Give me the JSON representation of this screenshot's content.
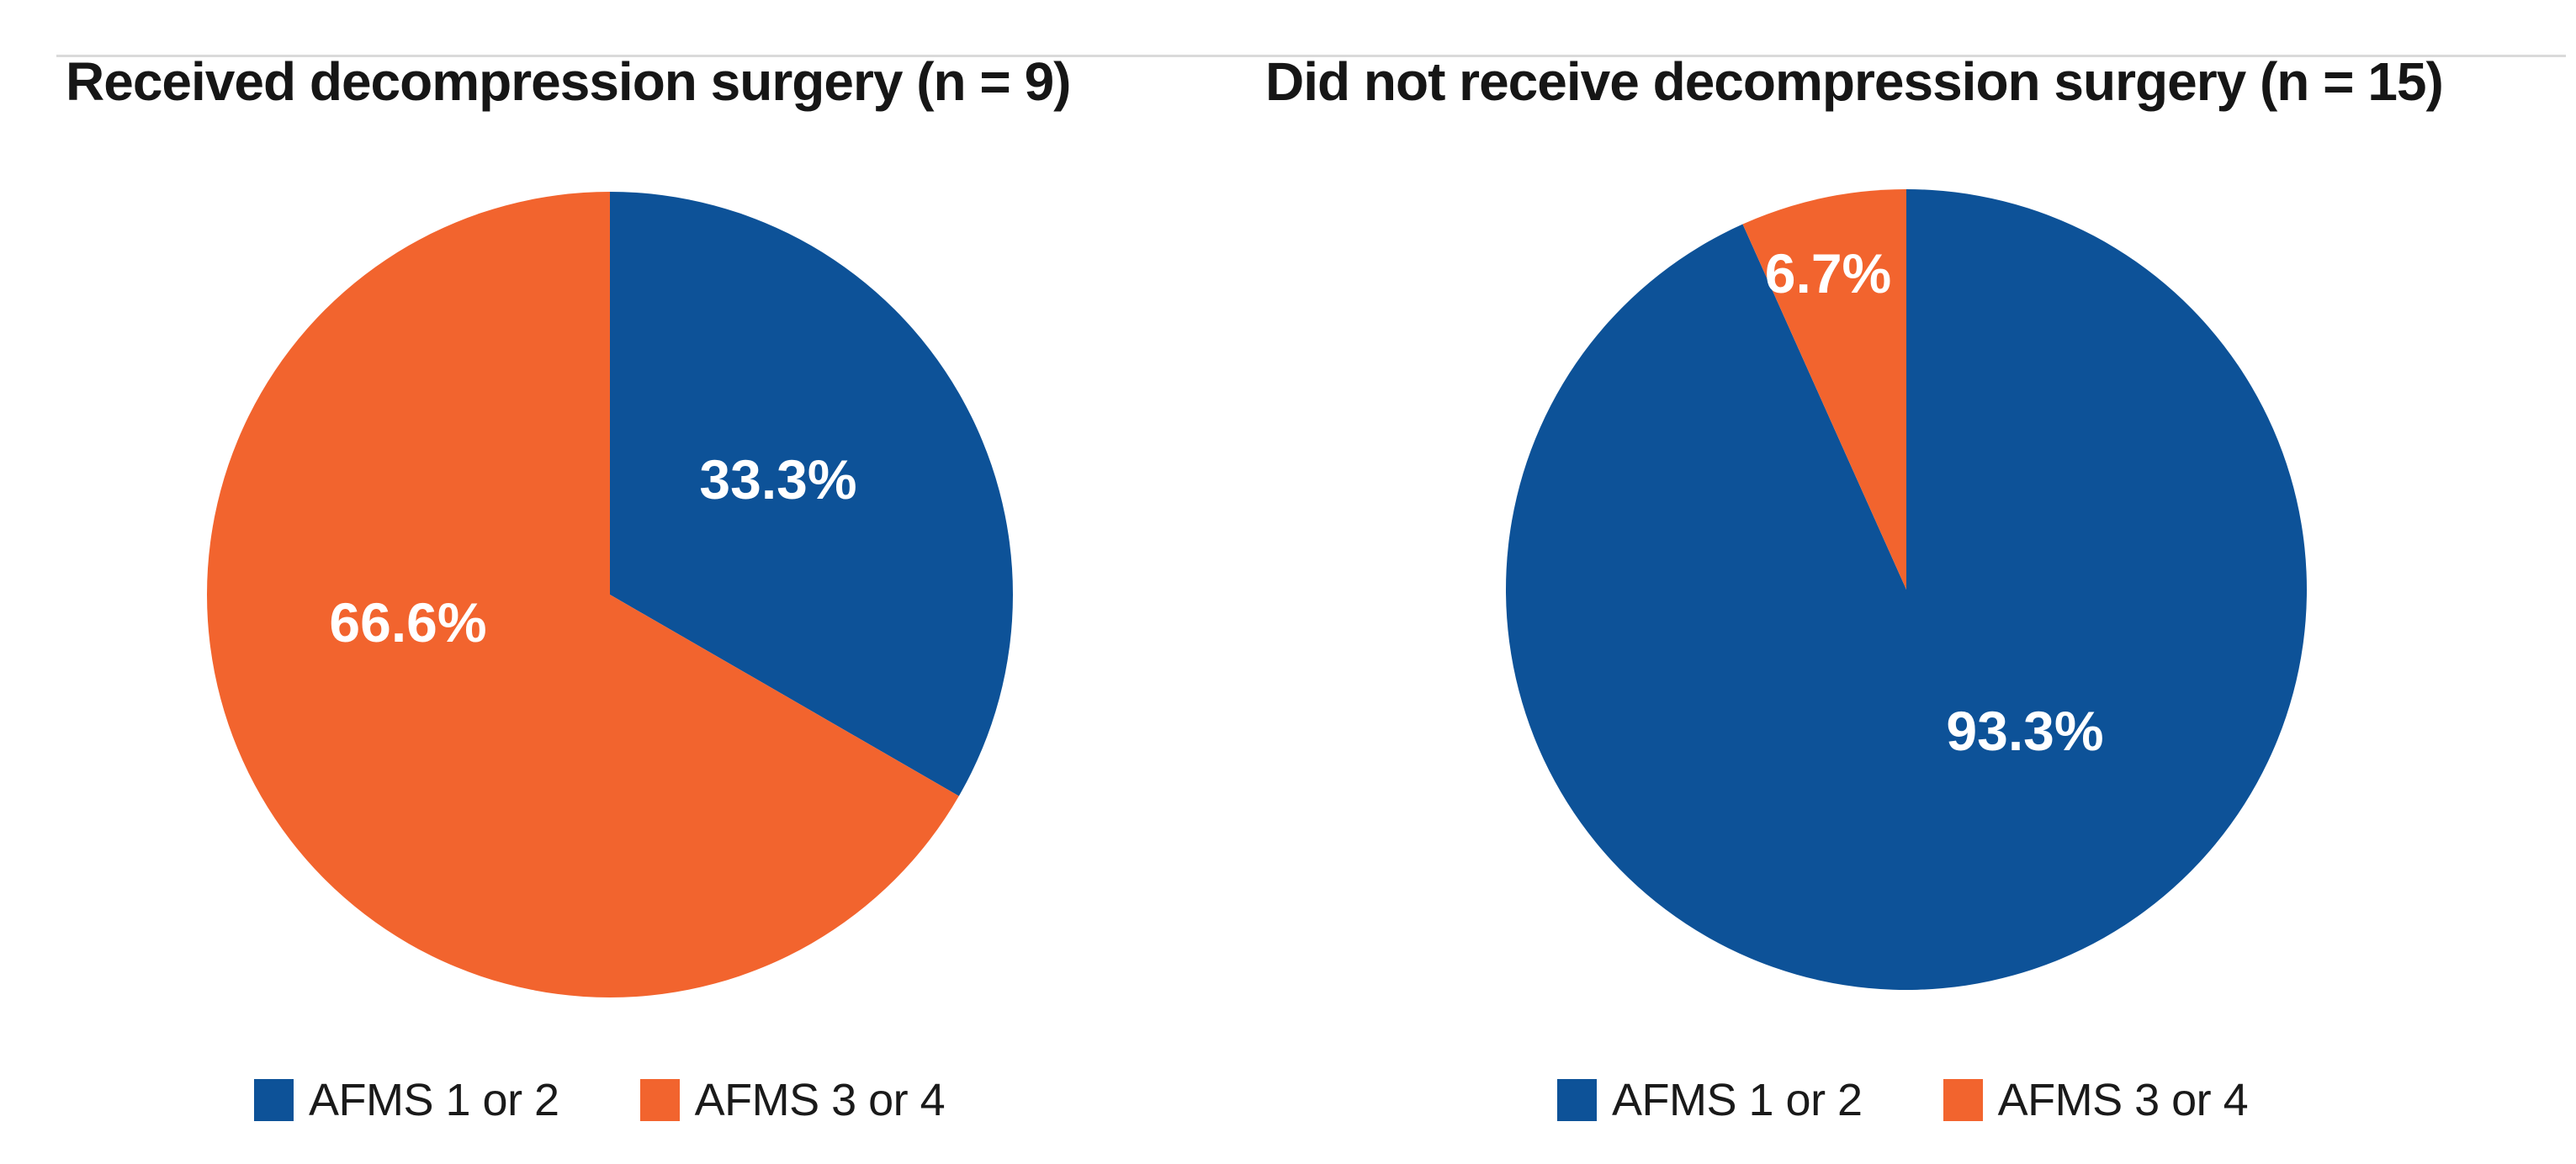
{
  "figure": {
    "background": "#FFFFFF",
    "divider_color": "#DADADA",
    "title_text_color": "#161616",
    "slice_label_color": "#FFFFFF"
  },
  "chart_data": [
    {
      "type": "pie",
      "title": "Received decompression surgery (n = 9)",
      "categories": [
        "AFMS 1 or 2",
        "AFMS 3 or 4"
      ],
      "values": [
        33.3,
        66.6
      ],
      "slice_labels": [
        "33.3%",
        "66.6%"
      ],
      "colors": [
        "#0D5298",
        "#F2642E"
      ],
      "start_angle": "12-oclock",
      "direction": "clockwise",
      "legend_position": "bottom"
    },
    {
      "type": "pie",
      "title": "Did not receive decompression surgery (n = 15)",
      "categories": [
        "AFMS 1 or 2",
        "AFMS 3 or 4"
      ],
      "values": [
        93.3,
        6.7
      ],
      "slice_labels": [
        "93.3%",
        "6.7%"
      ],
      "colors": [
        "#0D5298",
        "#F2642E"
      ],
      "start_angle": "12-oclock",
      "direction": "clockwise",
      "legend_position": "bottom"
    }
  ]
}
